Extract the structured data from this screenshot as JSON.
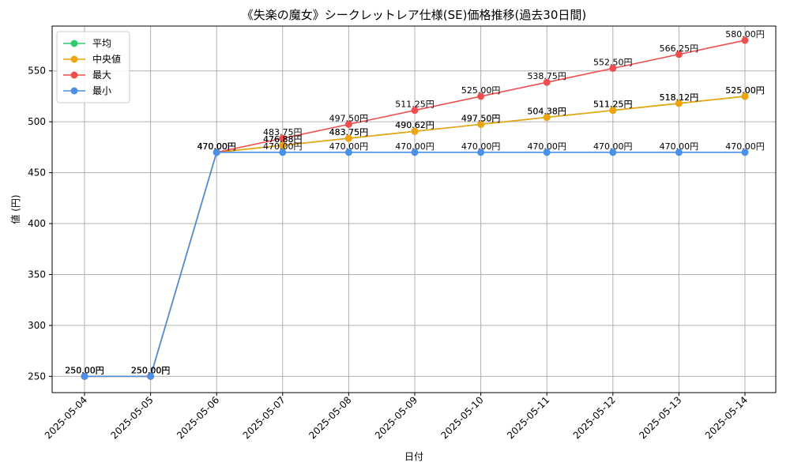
{
  "chart_data": {
    "type": "line",
    "title": "《失楽の魔女》シークレットレア仕様(SE)価格推移(過去30日間)",
    "xlabel": "日付",
    "ylabel": "値 (円)",
    "categories": [
      "2025-05-04",
      "2025-05-05",
      "2025-05-06",
      "2025-05-07",
      "2025-05-08",
      "2025-05-09",
      "2025-05-10",
      "2025-05-11",
      "2025-05-12",
      "2025-05-13",
      "2025-05-14"
    ],
    "ylim": [
      234,
      594
    ],
    "yticks": [
      250,
      300,
      350,
      400,
      450,
      500,
      550
    ],
    "grid": true,
    "legend_position": "top-left",
    "unit_suffix": "円",
    "series": [
      {
        "name": "平均",
        "color": "#2ecc71",
        "values": [
          250,
          250,
          470,
          476.88,
          483.75,
          490.62,
          497.5,
          504.38,
          511.25,
          518.12,
          525
        ]
      },
      {
        "name": "中央値",
        "color": "#f0a30a",
        "values": [
          250,
          250,
          470,
          476.88,
          483.75,
          490.62,
          497.5,
          504.38,
          511.25,
          518.12,
          525
        ]
      },
      {
        "name": "最大",
        "color": "#f04e4e",
        "values": [
          250,
          250,
          470,
          483.75,
          497.5,
          511.25,
          525,
          538.75,
          552.5,
          566.25,
          580
        ]
      },
      {
        "name": "最小",
        "color": "#4a90e8",
        "values": [
          250,
          250,
          470,
          470,
          470,
          470,
          470,
          470,
          470,
          470,
          470
        ]
      }
    ]
  }
}
